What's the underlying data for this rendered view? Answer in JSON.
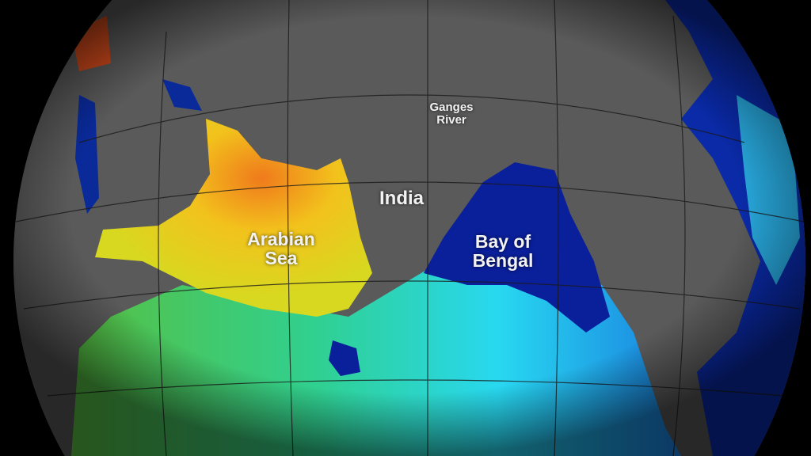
{
  "map": {
    "labels": {
      "ganges": "Ganges\nRiver",
      "india": "India",
      "arabian_sea": "Arabian\nSea",
      "bay_of_bengal": "Bay of\nBengal"
    },
    "colors": {
      "land": "#5a5a5a",
      "high_salinity": "#f08020",
      "mid_salinity": "#f2d21c",
      "green": "#4cc04a",
      "cyan": "#28d8e8",
      "low_salinity": "#0a1f9a",
      "background": "#000000"
    }
  }
}
